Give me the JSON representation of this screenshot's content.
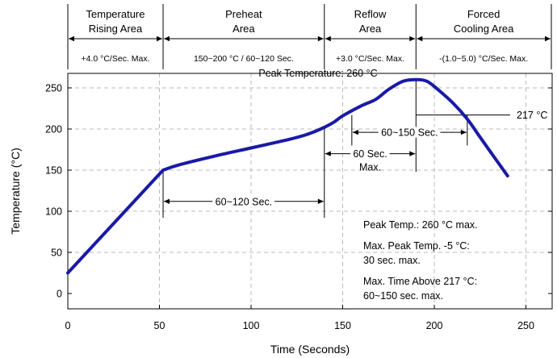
{
  "zones": [
    {
      "name_l1": "Temperature",
      "name_l2": "Rising Area",
      "rate": "+4.0 °C/Sec. Max.",
      "x_start": 0,
      "x_end": 52
    },
    {
      "name_l1": "Preheat",
      "name_l2": "Area",
      "rate": "150~200 °C / 60~120 Sec.",
      "x_start": 52,
      "x_end": 140
    },
    {
      "name_l1": "Reflow",
      "name_l2": "Area",
      "rate": "+3.0 °C/Sec. Max.",
      "x_start": 140,
      "x_end": 190
    },
    {
      "name_l1": "Forced",
      "name_l2": "Cooling Area",
      "rate": "-(1.0~5.0) °C/Sec. Max.",
      "x_start": 190,
      "x_end": 265
    }
  ],
  "annotations": {
    "peak": "Peak Temperature: 260 °C",
    "liquidus": "217 °C",
    "preheat_span": "60~120 Sec.",
    "above_217_span": "60~150 Sec.",
    "peak_window_l1": "60 Sec.",
    "peak_window_l2": "Max."
  },
  "notes": {
    "peak_temp": "Peak Temp.: 260 °C max.",
    "peak_minus5_l1": "Max. Peak Temp. -5 °C:",
    "peak_minus5_l2": "30 sec. max.",
    "time_above_l1": "Max. Time Above 217 °C:",
    "time_above_l2": "60~150 sec. max."
  },
  "colors": {
    "profile": "#1a1aa6",
    "axes": "#000000",
    "grid": "#bbbbbb"
  },
  "chart_data": {
    "type": "line",
    "title": "",
    "xlabel": "Time (Seconds)",
    "ylabel": "Temperature (°C)",
    "xlim": [
      0,
      265
    ],
    "ylim": [
      0,
      290
    ],
    "xticks": [
      0,
      50,
      100,
      150,
      200,
      250
    ],
    "yticks": [
      0,
      50,
      100,
      150,
      200,
      250
    ],
    "grid": "dashed",
    "series": [
      {
        "x": [
          0,
          52,
          60,
          80,
          100,
          120,
          130,
          138,
          145,
          150,
          160,
          168,
          175,
          183,
          190,
          196,
          202,
          210,
          218,
          225,
          232,
          240
        ],
        "y": [
          25,
          150,
          156,
          167,
          177,
          187,
          193,
          200,
          208,
          216,
          228,
          236,
          248,
          258,
          260,
          258,
          248,
          232,
          212,
          190,
          168,
          143
        ]
      }
    ]
  }
}
